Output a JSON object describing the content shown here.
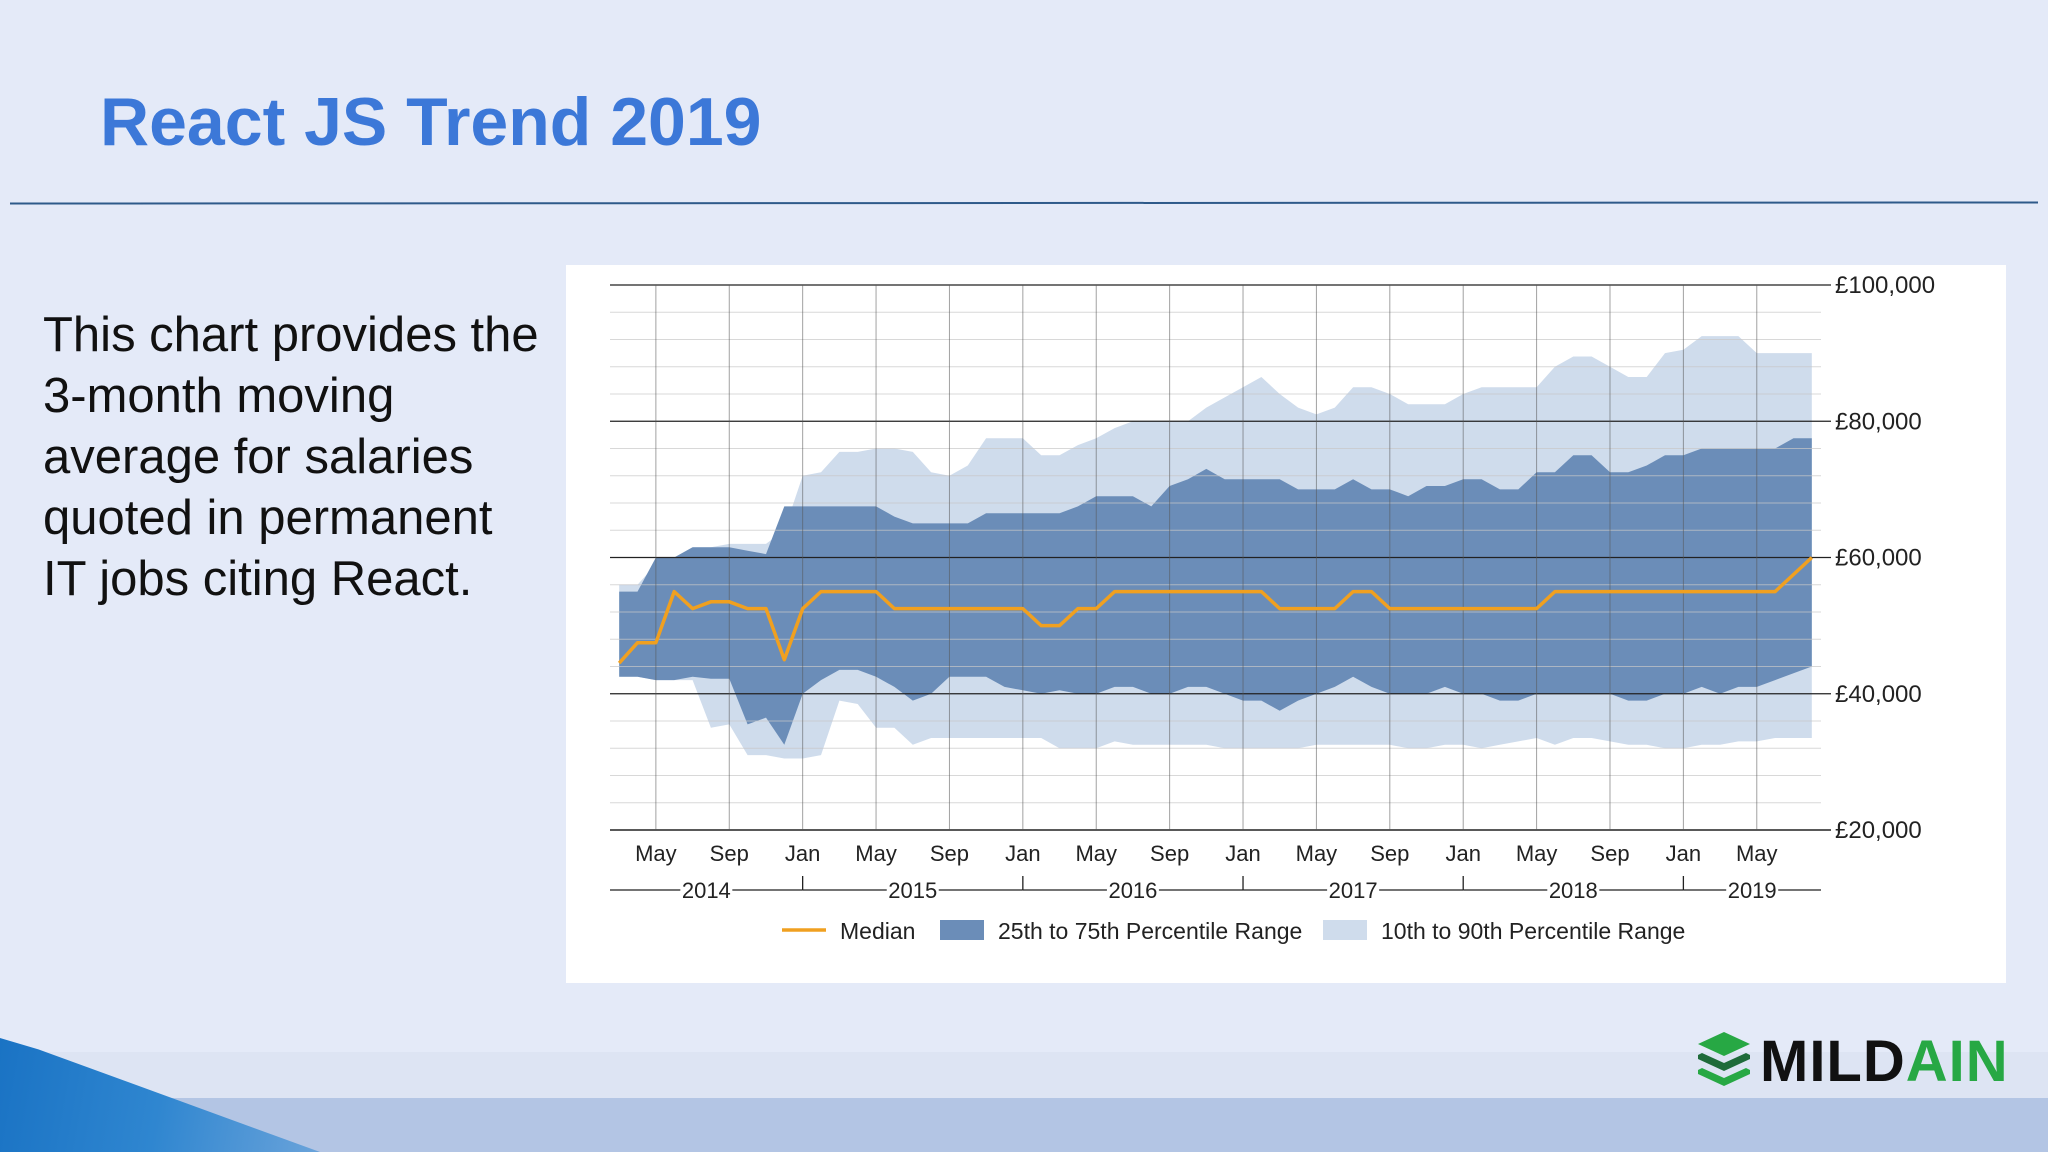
{
  "slide": {
    "title": "React JS Trend 2019",
    "description": "This chart provides the 3-month moving average for salaries quoted in permanent IT jobs citing React."
  },
  "logo": {
    "text_dark": "MILD",
    "text_green": "AIN"
  },
  "colors": {
    "title": "#3c78d8",
    "median": "#f0a020",
    "band_25_75": "#6b8db8",
    "band_10_90": "#cfdcec",
    "logo_green": "#27a844"
  },
  "chart_data": {
    "type": "area",
    "title": "",
    "xlabel": "",
    "ylabel": "",
    "y_axis_side": "right",
    "ylim": [
      20000,
      100000
    ],
    "y_ticks": [
      20000,
      40000,
      60000,
      80000,
      100000
    ],
    "y_tick_labels": [
      "£20,000",
      "£40,000",
      "£60,000",
      "£80,000",
      "£100,000"
    ],
    "x_start": "2014-03",
    "x_end": "2019-08",
    "x_month_ticks": [
      {
        "month": "2014-05",
        "label": "May"
      },
      {
        "month": "2014-09",
        "label": "Sep"
      },
      {
        "month": "2015-01",
        "label": "Jan"
      },
      {
        "month": "2015-05",
        "label": "May"
      },
      {
        "month": "2015-09",
        "label": "Sep"
      },
      {
        "month": "2016-01",
        "label": "Jan"
      },
      {
        "month": "2016-05",
        "label": "May"
      },
      {
        "month": "2016-09",
        "label": "Sep"
      },
      {
        "month": "2017-01",
        "label": "Jan"
      },
      {
        "month": "2017-05",
        "label": "May"
      },
      {
        "month": "2017-09",
        "label": "Sep"
      },
      {
        "month": "2018-01",
        "label": "Jan"
      },
      {
        "month": "2018-05",
        "label": "May"
      },
      {
        "month": "2018-09",
        "label": "Sep"
      },
      {
        "month": "2019-01",
        "label": "Jan"
      },
      {
        "month": "2019-05",
        "label": "May"
      }
    ],
    "x_year_labels": [
      {
        "label": "2014",
        "span": [
          "2014-03",
          "2015-01"
        ]
      },
      {
        "label": "2015",
        "span": [
          "2015-01",
          "2016-01"
        ]
      },
      {
        "label": "2016",
        "span": [
          "2016-01",
          "2017-01"
        ]
      },
      {
        "label": "2017",
        "span": [
          "2017-01",
          "2018-01"
        ]
      },
      {
        "label": "2018",
        "span": [
          "2018-01",
          "2019-01"
        ]
      },
      {
        "label": "2019",
        "span": [
          "2019-01",
          "2019-08"
        ]
      }
    ],
    "x": [
      "2014-03",
      "2014-04",
      "2014-05",
      "2014-06",
      "2014-07",
      "2014-08",
      "2014-09",
      "2014-10",
      "2014-11",
      "2014-12",
      "2015-01",
      "2015-02",
      "2015-03",
      "2015-04",
      "2015-05",
      "2015-06",
      "2015-07",
      "2015-08",
      "2015-09",
      "2015-10",
      "2015-11",
      "2015-12",
      "2016-01",
      "2016-02",
      "2016-03",
      "2016-04",
      "2016-05",
      "2016-06",
      "2016-07",
      "2016-08",
      "2016-09",
      "2016-10",
      "2016-11",
      "2016-12",
      "2017-01",
      "2017-02",
      "2017-03",
      "2017-04",
      "2017-05",
      "2017-06",
      "2017-07",
      "2017-08",
      "2017-09",
      "2017-10",
      "2017-11",
      "2017-12",
      "2018-01",
      "2018-02",
      "2018-03",
      "2018-04",
      "2018-05",
      "2018-06",
      "2018-07",
      "2018-08",
      "2018-09",
      "2018-10",
      "2018-11",
      "2018-12",
      "2019-01",
      "2019-02",
      "2019-03",
      "2019-04",
      "2019-05",
      "2019-06",
      "2019-07",
      "2019-08"
    ],
    "median": [
      44500,
      47500,
      47500,
      55000,
      52500,
      53500,
      53500,
      52500,
      52500,
      45000,
      52500,
      55000,
      55000,
      55000,
      55000,
      52500,
      52500,
      52500,
      52500,
      52500,
      52500,
      52500,
      52500,
      50000,
      50000,
      52500,
      52500,
      55000,
      55000,
      55000,
      55000,
      55000,
      55000,
      55000,
      55000,
      55000,
      52500,
      52500,
      52500,
      52500,
      55000,
      55000,
      52500,
      52500,
      52500,
      52500,
      52500,
      52500,
      52500,
      52500,
      52500,
      55000,
      55000,
      55000,
      55000,
      55000,
      55000,
      55000,
      55000,
      55000,
      55000,
      55000,
      55000,
      55000,
      57500,
      60000
    ],
    "series": [
      {
        "name": "25th to 75th Percentile Range",
        "low": [
          42500,
          42500,
          42000,
          42000,
          42500,
          42200,
          42200,
          35500,
          36500,
          32500,
          40000,
          42000,
          43500,
          43500,
          42500,
          41000,
          39000,
          40000,
          42500,
          42500,
          42500,
          41000,
          40500,
          40000,
          40500,
          40000,
          40000,
          41000,
          41000,
          40000,
          40000,
          41000,
          41000,
          40000,
          39000,
          39000,
          37500,
          39000,
          40000,
          41000,
          42500,
          41000,
          40000,
          40000,
          40000,
          41000,
          40000,
          40000,
          39000,
          39000,
          40000,
          40000,
          40000,
          40000,
          40000,
          39000,
          39000,
          40000,
          40000,
          41000,
          40000,
          41000,
          41000,
          42000,
          43000,
          44000
        ],
        "high": [
          55000,
          55000,
          60000,
          60000,
          61500,
          61500,
          61500,
          61000,
          60500,
          67500,
          67500,
          67500,
          67500,
          67500,
          67500,
          66000,
          65000,
          65000,
          65000,
          65000,
          66500,
          66500,
          66500,
          66500,
          66500,
          67500,
          69000,
          69000,
          69000,
          67500,
          70500,
          71500,
          73000,
          71500,
          71500,
          71500,
          71500,
          70000,
          70000,
          70000,
          71500,
          70000,
          70000,
          69000,
          70500,
          70500,
          71500,
          71500,
          70000,
          70000,
          72500,
          72500,
          75000,
          75000,
          72500,
          72500,
          73500,
          75000,
          75000,
          76000,
          76000,
          76000,
          76000,
          76000,
          77500,
          77500
        ]
      },
      {
        "name": "10th to 90th Percentile Range",
        "low": [
          42500,
          42500,
          42000,
          42000,
          42000,
          35000,
          35500,
          31000,
          31000,
          30500,
          30500,
          31000,
          39000,
          38500,
          35000,
          35000,
          32500,
          33500,
          33500,
          33500,
          33500,
          33500,
          33500,
          33500,
          32000,
          32000,
          32000,
          33000,
          32500,
          32500,
          32500,
          32500,
          32500,
          32000,
          32000,
          32000,
          32000,
          32000,
          32500,
          32500,
          32500,
          32500,
          32500,
          32000,
          32000,
          32500,
          32500,
          32000,
          32500,
          33000,
          33500,
          32500,
          33500,
          33500,
          33000,
          32500,
          32500,
          32000,
          32000,
          32500,
          32500,
          33000,
          33000,
          33500,
          33500,
          33500
        ],
        "high": [
          56000,
          56000,
          59000,
          60000,
          61500,
          61500,
          62000,
          62000,
          62000,
          64000,
          72000,
          72500,
          75500,
          75500,
          76000,
          76000,
          75500,
          72500,
          72000,
          73500,
          77500,
          77500,
          77500,
          75000,
          75000,
          76500,
          77500,
          79000,
          80000,
          80000,
          80000,
          80000,
          82000,
          83500,
          85000,
          86500,
          84000,
          82000,
          81000,
          82000,
          85000,
          85000,
          84000,
          82500,
          82500,
          82500,
          84000,
          85000,
          85000,
          85000,
          85000,
          88000,
          89500,
          89500,
          88000,
          86500,
          86500,
          90000,
          90500,
          92500,
          92500,
          92500,
          90000,
          90000,
          90000,
          90000
        ]
      }
    ],
    "legend": {
      "placement": "bottom",
      "items": [
        "Median",
        "25th to 75th Percentile Range",
        "10th to 90th Percentile Range"
      ]
    },
    "grid": true
  }
}
